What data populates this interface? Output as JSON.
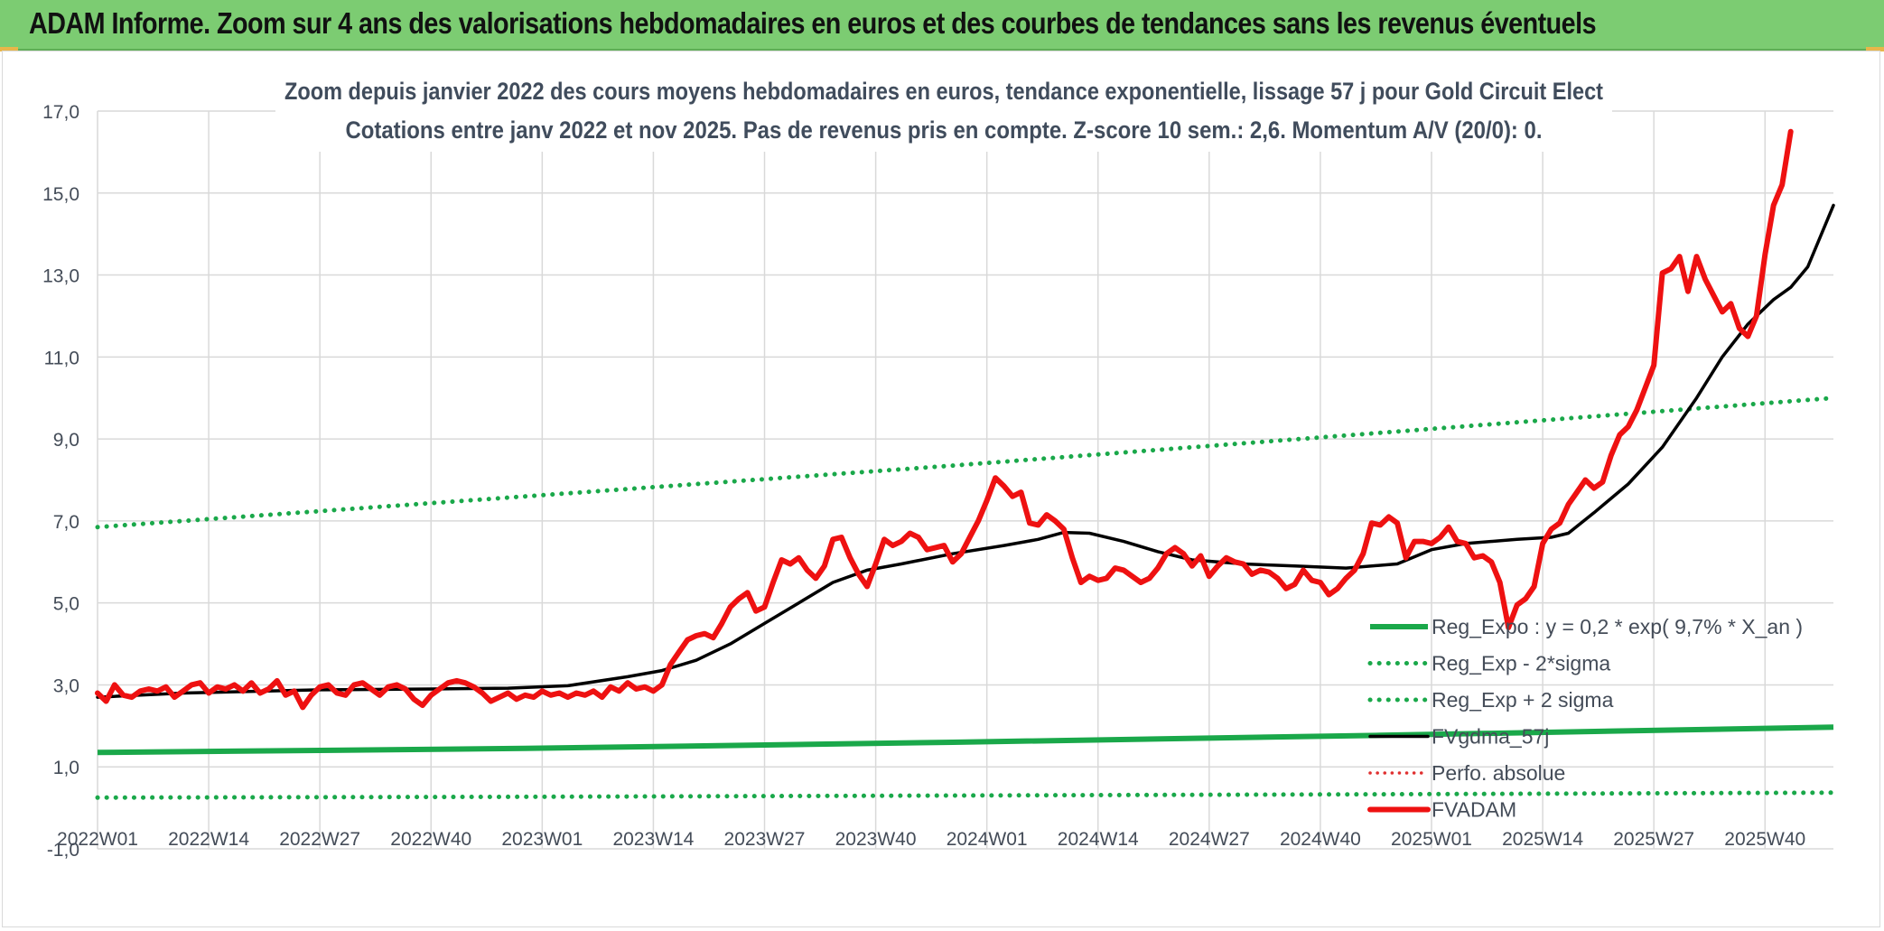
{
  "header": {
    "title": "ADAM Informe. Zoom sur 4 ans des valorisations hebdomadaires en euros et des courbes de tendances sans les revenus éventuels"
  },
  "chart_data": {
    "type": "line",
    "title": "Zoom depuis janvier 2022 des cours moyens hebdomadaires en euros, tendance exponentielle, lissage 57 j pour Gold Circuit Elect",
    "subtitle": "Cotations entre janv 2022 et nov 2025. Pas de revenus pris en compte. Z-score 10 sem.: 2,6. Momentum A/V (20/0): 0.",
    "xlabel": "",
    "ylabel": "",
    "ylim": [
      -1,
      17
    ],
    "yticks": [
      "17,0",
      "15,0",
      "13,0",
      "11,0",
      "9,0",
      "7,0",
      "5,0",
      "3,0",
      "1,0",
      "-1,0"
    ],
    "x_tick_labels": [
      "2022W01",
      "2022W14",
      "2022W27",
      "2022W40",
      "2023W01",
      "2023W14",
      "2023W27",
      "2023W40",
      "2024W01",
      "2024W14",
      "2024W27",
      "2024W40",
      "2025W01",
      "2025W14",
      "2025W27",
      "2025W40"
    ],
    "weeks_total": 203,
    "grid": true,
    "legend_position": "lower-right",
    "colors": {
      "reg_expo": "#1aa84a",
      "sigma": "#1aa84a",
      "gdma": "#000000",
      "perfo": "#e03030",
      "fvadam": "#ee1111"
    },
    "series": [
      {
        "name": "Reg_Expo : y = 0,2 * exp( 9,7% *  X_an )",
        "style": "solid-thick",
        "values": [
          [
            0,
            1.35
          ],
          [
            50,
            1.45
          ],
          [
            100,
            1.6
          ],
          [
            150,
            1.77
          ],
          [
            203,
            1.97
          ]
        ]
      },
      {
        "name": "Reg_Exp - 2*sigma",
        "style": "dotted",
        "values": [
          [
            0,
            0.25
          ],
          [
            50,
            0.27
          ],
          [
            100,
            0.3
          ],
          [
            150,
            0.33
          ],
          [
            203,
            0.37
          ]
        ]
      },
      {
        "name": "Reg_Exp + 2 sigma",
        "style": "dotted",
        "values": [
          [
            0,
            6.85
          ],
          [
            50,
            7.6
          ],
          [
            100,
            8.35
          ],
          [
            150,
            9.15
          ],
          [
            203,
            10.0
          ]
        ]
      },
      {
        "name": "FVgdma_57j",
        "style": "solid",
        "values": [
          [
            0,
            2.7
          ],
          [
            10,
            2.8
          ],
          [
            26,
            2.88
          ],
          [
            39,
            2.9
          ],
          [
            48,
            2.92
          ],
          [
            55,
            2.98
          ],
          [
            62,
            3.2
          ],
          [
            66,
            3.35
          ],
          [
            70,
            3.6
          ],
          [
            74,
            4.0
          ],
          [
            78,
            4.5
          ],
          [
            82,
            5.0
          ],
          [
            86,
            5.5
          ],
          [
            90,
            5.8
          ],
          [
            94,
            5.95
          ],
          [
            100,
            6.2
          ],
          [
            106,
            6.4
          ],
          [
            110,
            6.55
          ],
          [
            113,
            6.72
          ],
          [
            116,
            6.7
          ],
          [
            120,
            6.5
          ],
          [
            124,
            6.25
          ],
          [
            128,
            6.05
          ],
          [
            134,
            5.95
          ],
          [
            140,
            5.9
          ],
          [
            146,
            5.85
          ],
          [
            152,
            5.95
          ],
          [
            156,
            6.3
          ],
          [
            160,
            6.45
          ],
          [
            166,
            6.55
          ],
          [
            170,
            6.6
          ],
          [
            172,
            6.7
          ],
          [
            175,
            7.2
          ],
          [
            179,
            7.9
          ],
          [
            183,
            8.8
          ],
          [
            187,
            10.0
          ],
          [
            190,
            11.0
          ],
          [
            193,
            11.8
          ],
          [
            196,
            12.4
          ],
          [
            198,
            12.7
          ],
          [
            200,
            13.2
          ],
          [
            203,
            14.7
          ]
        ]
      },
      {
        "name": "Perfo. absolue",
        "style": "dotted",
        "values": []
      },
      {
        "name": "FVADAM",
        "style": "solid-thick",
        "values": [
          [
            0,
            2.8
          ],
          [
            1,
            2.6
          ],
          [
            2,
            3.0
          ],
          [
            3,
            2.75
          ],
          [
            4,
            2.7
          ],
          [
            5,
            2.85
          ],
          [
            6,
            2.9
          ],
          [
            7,
            2.85
          ],
          [
            8,
            2.95
          ],
          [
            9,
            2.7
          ],
          [
            10,
            2.85
          ],
          [
            11,
            3.0
          ],
          [
            12,
            3.05
          ],
          [
            13,
            2.8
          ],
          [
            14,
            2.95
          ],
          [
            15,
            2.9
          ],
          [
            16,
            3.0
          ],
          [
            17,
            2.85
          ],
          [
            18,
            3.05
          ],
          [
            19,
            2.8
          ],
          [
            20,
            2.9
          ],
          [
            21,
            3.1
          ],
          [
            22,
            2.75
          ],
          [
            23,
            2.85
          ],
          [
            24,
            2.45
          ],
          [
            25,
            2.75
          ],
          [
            26,
            2.95
          ],
          [
            27,
            3.0
          ],
          [
            28,
            2.8
          ],
          [
            29,
            2.75
          ],
          [
            30,
            3.0
          ],
          [
            31,
            3.05
          ],
          [
            32,
            2.9
          ],
          [
            33,
            2.75
          ],
          [
            34,
            2.95
          ],
          [
            35,
            3.0
          ],
          [
            36,
            2.9
          ],
          [
            37,
            2.65
          ],
          [
            38,
            2.5
          ],
          [
            39,
            2.75
          ],
          [
            40,
            2.9
          ],
          [
            41,
            3.05
          ],
          [
            42,
            3.1
          ],
          [
            43,
            3.05
          ],
          [
            44,
            2.95
          ],
          [
            45,
            2.8
          ],
          [
            46,
            2.6
          ],
          [
            47,
            2.7
          ],
          [
            48,
            2.8
          ],
          [
            49,
            2.65
          ],
          [
            50,
            2.75
          ],
          [
            51,
            2.7
          ],
          [
            52,
            2.85
          ],
          [
            53,
            2.75
          ],
          [
            54,
            2.8
          ],
          [
            55,
            2.7
          ],
          [
            56,
            2.8
          ],
          [
            57,
            2.75
          ],
          [
            58,
            2.85
          ],
          [
            59,
            2.7
          ],
          [
            60,
            2.95
          ],
          [
            61,
            2.85
          ],
          [
            62,
            3.05
          ],
          [
            63,
            2.9
          ],
          [
            64,
            2.95
          ],
          [
            65,
            2.85
          ],
          [
            66,
            3.0
          ],
          [
            67,
            3.5
          ],
          [
            68,
            3.8
          ],
          [
            69,
            4.1
          ],
          [
            70,
            4.2
          ],
          [
            71,
            4.25
          ],
          [
            72,
            4.15
          ],
          [
            73,
            4.5
          ],
          [
            74,
            4.9
          ],
          [
            75,
            5.1
          ],
          [
            76,
            5.25
          ],
          [
            77,
            4.8
          ],
          [
            78,
            4.9
          ],
          [
            79,
            5.5
          ],
          [
            80,
            6.05
          ],
          [
            81,
            5.95
          ],
          [
            82,
            6.1
          ],
          [
            83,
            5.8
          ],
          [
            84,
            5.6
          ],
          [
            85,
            5.9
          ],
          [
            86,
            6.55
          ],
          [
            87,
            6.6
          ],
          [
            88,
            6.1
          ],
          [
            89,
            5.7
          ],
          [
            90,
            5.4
          ],
          [
            91,
            5.95
          ],
          [
            92,
            6.55
          ],
          [
            93,
            6.4
          ],
          [
            94,
            6.5
          ],
          [
            95,
            6.7
          ],
          [
            96,
            6.6
          ],
          [
            97,
            6.3
          ],
          [
            98,
            6.35
          ],
          [
            99,
            6.4
          ],
          [
            100,
            6.0
          ],
          [
            101,
            6.2
          ],
          [
            102,
            6.6
          ],
          [
            103,
            7.0
          ],
          [
            104,
            7.5
          ],
          [
            105,
            8.05
          ],
          [
            106,
            7.85
          ],
          [
            107,
            7.6
          ],
          [
            108,
            7.7
          ],
          [
            109,
            6.95
          ],
          [
            110,
            6.9
          ],
          [
            111,
            7.15
          ],
          [
            112,
            7.0
          ],
          [
            113,
            6.8
          ],
          [
            114,
            6.1
          ],
          [
            115,
            5.5
          ],
          [
            116,
            5.65
          ],
          [
            117,
            5.55
          ],
          [
            118,
            5.6
          ],
          [
            119,
            5.85
          ],
          [
            120,
            5.8
          ],
          [
            121,
            5.65
          ],
          [
            122,
            5.5
          ],
          [
            123,
            5.6
          ],
          [
            124,
            5.85
          ],
          [
            125,
            6.2
          ],
          [
            126,
            6.35
          ],
          [
            127,
            6.2
          ],
          [
            128,
            5.9
          ],
          [
            129,
            6.15
          ],
          [
            130,
            5.65
          ],
          [
            131,
            5.9
          ],
          [
            132,
            6.1
          ],
          [
            133,
            6.0
          ],
          [
            134,
            5.95
          ],
          [
            135,
            5.7
          ],
          [
            136,
            5.8
          ],
          [
            137,
            5.75
          ],
          [
            138,
            5.6
          ],
          [
            139,
            5.35
          ],
          [
            140,
            5.45
          ],
          [
            141,
            5.8
          ],
          [
            142,
            5.55
          ],
          [
            143,
            5.5
          ],
          [
            144,
            5.2
          ],
          [
            145,
            5.35
          ],
          [
            146,
            5.6
          ],
          [
            147,
            5.8
          ],
          [
            148,
            6.2
          ],
          [
            149,
            6.95
          ],
          [
            150,
            6.9
          ],
          [
            151,
            7.1
          ],
          [
            152,
            6.95
          ],
          [
            153,
            6.1
          ],
          [
            154,
            6.5
          ],
          [
            155,
            6.5
          ],
          [
            156,
            6.45
          ],
          [
            157,
            6.6
          ],
          [
            158,
            6.85
          ],
          [
            159,
            6.5
          ],
          [
            160,
            6.45
          ],
          [
            161,
            6.1
          ],
          [
            162,
            6.15
          ],
          [
            163,
            6.0
          ],
          [
            164,
            5.5
          ],
          [
            165,
            4.4
          ],
          [
            166,
            4.95
          ],
          [
            167,
            5.1
          ],
          [
            168,
            5.4
          ],
          [
            169,
            6.45
          ],
          [
            170,
            6.8
          ],
          [
            171,
            6.95
          ],
          [
            172,
            7.4
          ],
          [
            173,
            7.7
          ],
          [
            174,
            8.0
          ],
          [
            175,
            7.8
          ],
          [
            176,
            7.95
          ],
          [
            177,
            8.6
          ],
          [
            178,
            9.1
          ],
          [
            179,
            9.3
          ],
          [
            180,
            9.7
          ],
          [
            181,
            10.25
          ],
          [
            182,
            10.8
          ],
          [
            183,
            13.05
          ],
          [
            184,
            13.15
          ],
          [
            185,
            13.45
          ],
          [
            186,
            12.6
          ],
          [
            187,
            13.45
          ],
          [
            188,
            12.9
          ],
          [
            189,
            12.5
          ],
          [
            190,
            12.1
          ],
          [
            191,
            12.3
          ],
          [
            192,
            11.7
          ],
          [
            193,
            11.5
          ],
          [
            194,
            12.0
          ],
          [
            195,
            13.5
          ],
          [
            196,
            14.7
          ],
          [
            197,
            15.2
          ],
          [
            198,
            16.5
          ]
        ]
      }
    ]
  }
}
